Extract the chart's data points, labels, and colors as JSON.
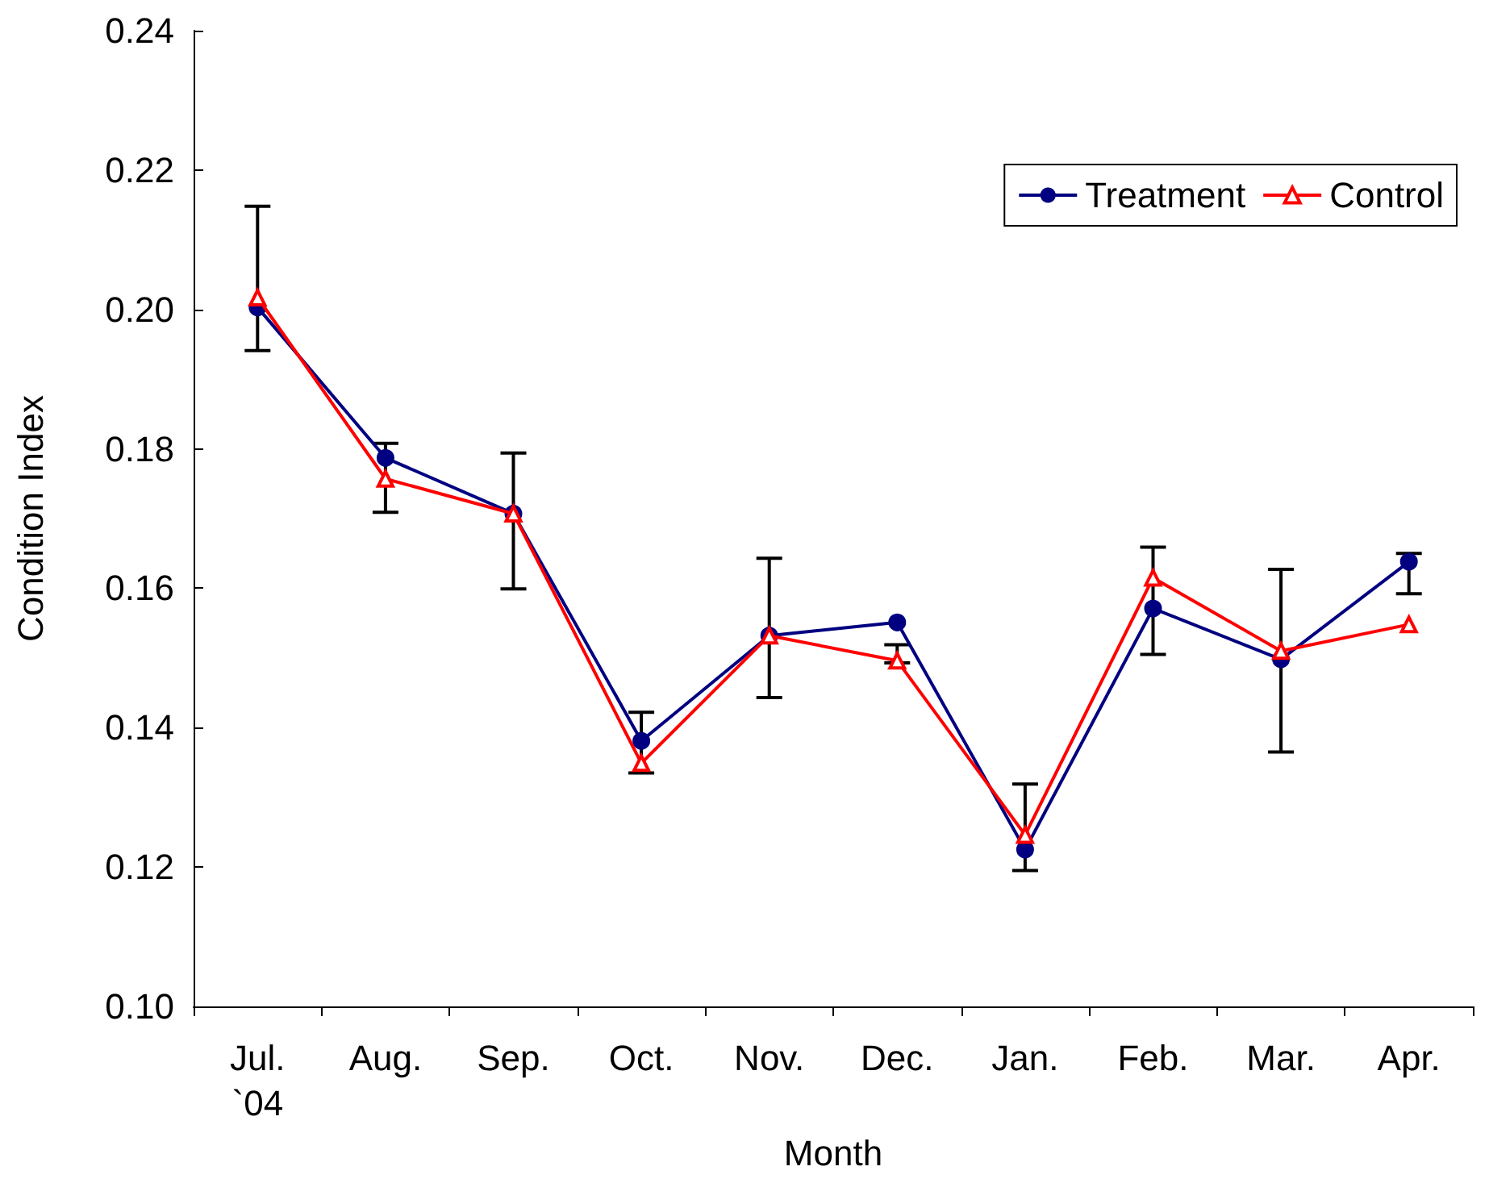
{
  "chart_data": {
    "type": "line",
    "xlabel": "Month",
    "ylabel": "Condition Index",
    "categories": [
      "Jul.\n`04",
      "Aug.",
      "Sep.",
      "Oct.",
      "Nov.",
      "Dec.",
      "Jan.",
      "Feb.",
      "Mar.",
      "Apr."
    ],
    "series": [
      {
        "name": "Treatment",
        "color": "#000080",
        "marker": "circle",
        "values": [
          0.2003,
          0.1787,
          0.1707,
          0.1381,
          0.1532,
          0.1551,
          0.1225,
          0.1571,
          0.1498,
          0.1638
        ],
        "errors": [
          [
            0.1941,
            0.2148
          ],
          [
            0.1709,
            0.1808
          ],
          [
            0.1599,
            0.1794
          ],
          [
            0.1335,
            0.1422
          ],
          [
            0.1443,
            0.1643
          ],
          [
            0.1493,
            0.1519
          ],
          [
            0.1195,
            0.1319
          ],
          [
            0.1505,
            0.1659
          ],
          [
            0.1365,
            0.1627
          ],
          [
            0.1592,
            0.165
          ]
        ]
      },
      {
        "name": "Control",
        "color": "#ff0000",
        "marker": "triangle",
        "values": [
          0.2017,
          0.1757,
          0.1707,
          0.1349,
          0.1532,
          0.1496,
          0.1246,
          0.1615,
          0.151,
          0.1548
        ]
      }
    ],
    "ylim": [
      0.1,
      0.24
    ],
    "yticks": [
      {
        "value": 0.1,
        "label": "0.10"
      },
      0.12,
      0.14,
      0.16,
      0.18,
      {
        "value": 0.2,
        "label": "0.20"
      },
      0.22,
      0.24
    ],
    "grid": false,
    "legend": "top right"
  }
}
